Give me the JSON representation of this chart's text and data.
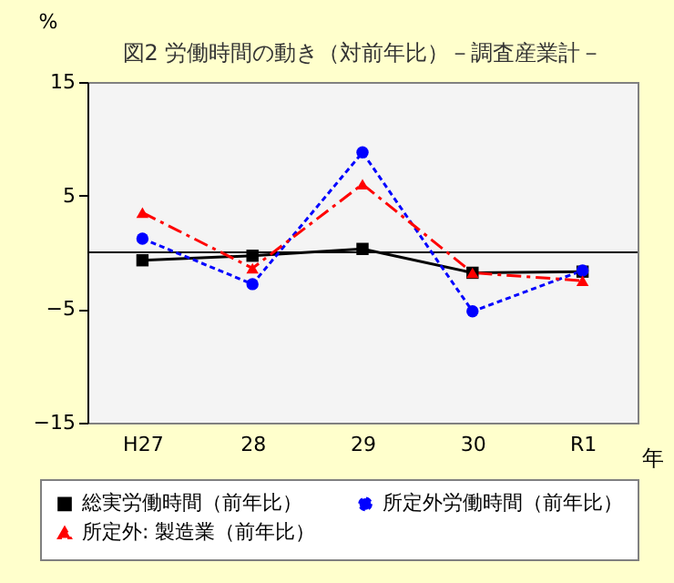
{
  "chart_data": {
    "type": "line",
    "title": "図2  労働時間の動き（対前年比）－調査産業計－",
    "xlabel": "年",
    "ylabel": "%",
    "categories": [
      "H27",
      "28",
      "29",
      "30",
      "R1"
    ],
    "series": [
      {
        "name": "総実労働時間（前年比）",
        "color": "#000000",
        "marker": "square",
        "line_style": "solid",
        "values": [
          -0.7,
          -0.3,
          0.3,
          -1.8,
          -1.7
        ]
      },
      {
        "name": "所定外労働時間（前年比）",
        "color": "#0000ff",
        "marker": "circle",
        "line_style": "dotted",
        "values": [
          1.2,
          -2.8,
          8.8,
          -5.2,
          -1.6
        ]
      },
      {
        "name": "所定外: 製造業（前年比）",
        "color": "#ff0000",
        "marker": "triangle",
        "line_style": "dashed",
        "values": [
          3.5,
          -1.4,
          6.0,
          -1.8,
          -2.5
        ]
      }
    ],
    "ylim": [
      -15,
      15
    ],
    "yticks": [
      -15,
      -5,
      5,
      15
    ],
    "ref_lines": [
      {
        "axis": "y",
        "value": 0
      }
    ],
    "grid": false,
    "legend": "bottom"
  }
}
